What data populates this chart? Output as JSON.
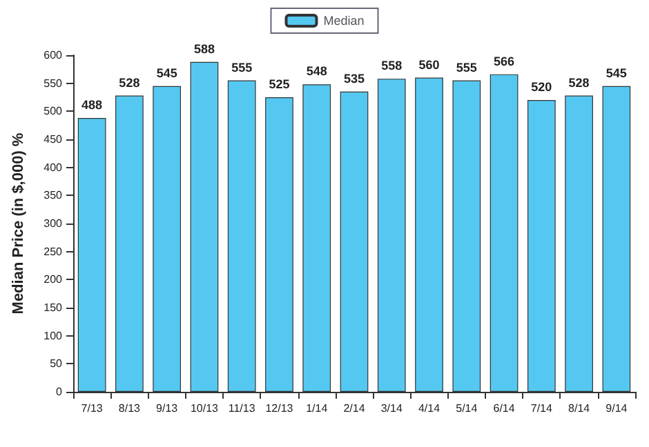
{
  "chart_data": {
    "type": "bar",
    "ylabel": "Median Price (in $,000) %",
    "categories": [
      "7/13",
      "8/13",
      "9/13",
      "10/13",
      "11/13",
      "12/13",
      "1/14",
      "2/14",
      "3/14",
      "4/14",
      "5/14",
      "6/14",
      "7/14",
      "8/14",
      "9/14"
    ],
    "series": [
      {
        "name": "Median",
        "color": "#55c8f2",
        "values": [
          488,
          528,
          545,
          588,
          555,
          525,
          548,
          535,
          558,
          560,
          555,
          566,
          520,
          528,
          545
        ]
      }
    ],
    "ylim": [
      0,
      600
    ],
    "yticks": [
      0,
      50,
      100,
      150,
      200,
      250,
      300,
      350,
      400,
      450,
      500,
      550,
      600
    ],
    "data_labels": true,
    "legend": "top",
    "grid": false
  }
}
